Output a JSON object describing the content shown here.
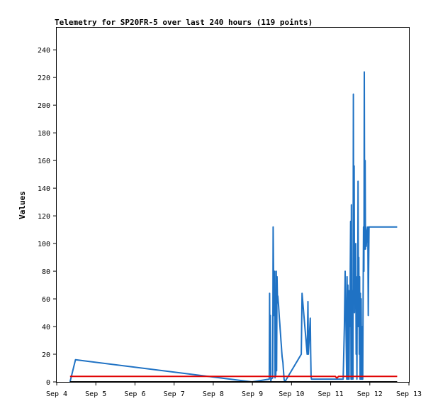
{
  "chart_data": {
    "type": "line",
    "title": "Telemetry for SP20FR-5 over last 240 hours (119 points)",
    "xlabel": "",
    "ylabel": "Values",
    "x_ticks": [
      "Sep 4",
      "Sep 5",
      "Sep 6",
      "Sep 7",
      "Sep 8",
      "Sep 9",
      "Sep 10",
      "Sep 11",
      "Sep 12",
      "Sep 13"
    ],
    "xlim": [
      0,
      9
    ],
    "ylim": [
      0,
      256
    ],
    "y_ticks": [
      0,
      20,
      40,
      60,
      80,
      100,
      120,
      140,
      160,
      180,
      200,
      220,
      240
    ],
    "grid": false,
    "series": [
      {
        "color": "#1f72c4",
        "x": [
          0.34,
          0.48,
          4.99,
          5.43,
          5.44,
          5.45,
          5.46,
          5.47,
          5.48,
          5.52,
          5.53,
          5.55,
          5.57,
          5.58,
          5.59,
          5.6,
          5.61,
          5.62,
          5.63,
          5.64,
          5.65,
          5.66,
          5.67,
          5.68,
          5.69,
          5.7,
          5.71,
          5.72,
          5.73,
          5.74,
          5.75,
          5.76,
          5.78,
          5.79,
          5.8,
          5.81,
          5.83,
          6.25,
          6.27,
          6.4,
          6.42,
          6.43,
          6.48,
          6.49,
          6.5,
          6.51,
          7.32,
          7.35,
          7.37,
          7.41,
          7.42,
          7.43,
          7.44,
          7.45,
          7.46,
          7.47,
          7.48,
          7.49,
          7.51,
          7.52,
          7.53,
          7.54,
          7.56,
          7.57,
          7.58,
          7.59,
          7.6,
          7.61,
          7.62,
          7.63,
          7.64,
          7.65,
          7.66,
          7.67,
          7.68,
          7.69,
          7.7,
          7.71,
          7.72,
          7.73,
          7.74,
          7.75,
          7.76,
          7.77,
          7.78,
          7.79,
          7.8,
          7.81,
          7.82,
          7.83,
          7.84,
          7.85,
          7.86,
          7.87,
          7.88,
          7.89,
          7.9,
          7.91,
          7.92,
          7.93,
          7.94,
          7.95,
          7.96,
          7.97,
          7.98,
          8.0,
          8.02,
          8.04,
          8.06,
          8.08,
          8.1,
          8.12,
          8.14,
          8.16,
          8.18,
          8.2,
          8.3,
          8.5,
          8.7
        ],
        "y": [
          0,
          16,
          0,
          2,
          64,
          10,
          48,
          0,
          2,
          3,
          112,
          48,
          80,
          3,
          48,
          5,
          80,
          8,
          76,
          60,
          62,
          58,
          55,
          50,
          46,
          42,
          38,
          34,
          30,
          26,
          22,
          18,
          14,
          10,
          6,
          2,
          0,
          20,
          64,
          20,
          58,
          20,
          46,
          20,
          4,
          2,
          2,
          40,
          80,
          2,
          76,
          2,
          70,
          2,
          66,
          2,
          60,
          40,
          116,
          2,
          128,
          2,
          66,
          2,
          208,
          80,
          156,
          50,
          90,
          60,
          100,
          20,
          60,
          2,
          76,
          40,
          145,
          40,
          90,
          20,
          76,
          2,
          64,
          2,
          60,
          2,
          40,
          2,
          2,
          66,
          112,
          80,
          224,
          96,
          160,
          96,
          112,
          98,
          104,
          106,
          110,
          112,
          48,
          80,
          112,
          112,
          112,
          112,
          112,
          112,
          112,
          112,
          112,
          112,
          112,
          112,
          112,
          112,
          112
        ]
      },
      {
        "color": "#e00000",
        "x": [
          0.34,
          7.12,
          7.15,
          7.17,
          7.2,
          8.7
        ],
        "y": [
          4,
          4,
          3,
          3,
          4,
          4
        ]
      },
      {
        "color": "#000000",
        "x": [
          0.34,
          8.7
        ],
        "y": [
          0,
          0
        ]
      }
    ]
  }
}
